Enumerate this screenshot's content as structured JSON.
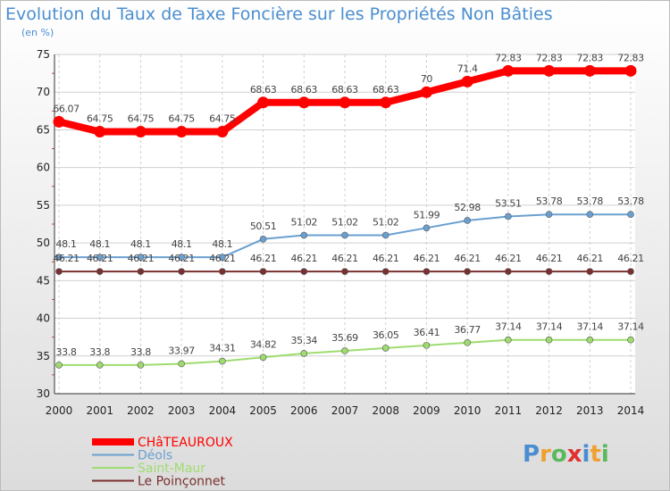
{
  "header": {
    "title": "Evolution du Taux de Taxe Foncière sur les Propriétés Non Bâties",
    "subtitle": "(en %)"
  },
  "logo": {
    "text": "Proxiti",
    "letters": [
      "P",
      "r",
      "o",
      "x",
      "i",
      "t",
      "i"
    ],
    "colors": [
      "#4a8ed0",
      "#f0a030",
      "#5cb85c",
      "#e03030",
      "#4a8ed0",
      "#f0a030",
      "#5cb85c"
    ]
  },
  "chart_data": {
    "type": "line",
    "title": "Evolution du Taux de Taxe Foncière sur les Propriétés Non Bâties",
    "ylabel": "(en %)",
    "xlabel": "",
    "ylim": [
      30,
      75
    ],
    "yticks": [
      30,
      35,
      40,
      45,
      50,
      55,
      60,
      65,
      70,
      75
    ],
    "grid": true,
    "legend_position": "bottom-left",
    "x": [
      "2000",
      "2001",
      "2002",
      "2003",
      "2004",
      "2005",
      "2006",
      "2007",
      "2008",
      "2009",
      "2010",
      "2011",
      "2012",
      "2013",
      "2014"
    ],
    "series": [
      {
        "name": "CHâTEAUROUX",
        "color": "#ff0000",
        "values": [
          66.07,
          64.75,
          64.75,
          64.75,
          64.75,
          68.63,
          68.63,
          68.63,
          68.63,
          70,
          71.4,
          72.83,
          72.83,
          72.83,
          72.83
        ],
        "labels": [
          "66.07",
          "64.75",
          "64.75",
          "64.75",
          "64.75",
          "68.63",
          "68.63",
          "68.63",
          "68.63",
          "70",
          "71.4",
          "72.83",
          "72.83",
          "72.83",
          "72.83"
        ]
      },
      {
        "name": "Déols",
        "color": "#6aa0d0",
        "values": [
          48.1,
          48.1,
          48.1,
          48.1,
          48.1,
          50.51,
          51.02,
          51.02,
          51.02,
          51.99,
          52.98,
          53.51,
          53.78,
          53.78,
          53.78
        ],
        "labels": [
          "48.1",
          "48.1",
          "48.1",
          "48.1",
          "48.1",
          "50.51",
          "51.02",
          "51.02",
          "51.02",
          "51.99",
          "52.98",
          "53.51",
          "53.78",
          "53.78",
          "53.78"
        ]
      },
      {
        "name": "Saint-Maur",
        "color": "#9fdc6f",
        "values": [
          33.8,
          33.8,
          33.8,
          33.97,
          34.31,
          34.82,
          35.34,
          35.69,
          36.05,
          36.41,
          36.77,
          37.14,
          37.14,
          37.14,
          37.14
        ],
        "labels": [
          "33.8",
          "33.8",
          "33.8",
          "33.97",
          "34.31",
          "34.82",
          "35.34",
          "35.69",
          "36.05",
          "36.41",
          "36.77",
          "37.14",
          "37.14",
          "37.14",
          "37.14"
        ]
      },
      {
        "name": "Le Poinçonnet",
        "color": "#7a3030",
        "values": [
          46.21,
          46.21,
          46.21,
          46.21,
          46.21,
          46.21,
          46.21,
          46.21,
          46.21,
          46.21,
          46.21,
          46.21,
          46.21,
          46.21,
          46.21
        ],
        "labels": [
          "46.21",
          "46.21",
          "46.21",
          "46.21",
          "46.21",
          "46.21",
          "46.21",
          "46.21",
          "46.21",
          "46.21",
          "46.21",
          "46.21",
          "46.21",
          "46.21",
          "46.21"
        ]
      }
    ]
  }
}
